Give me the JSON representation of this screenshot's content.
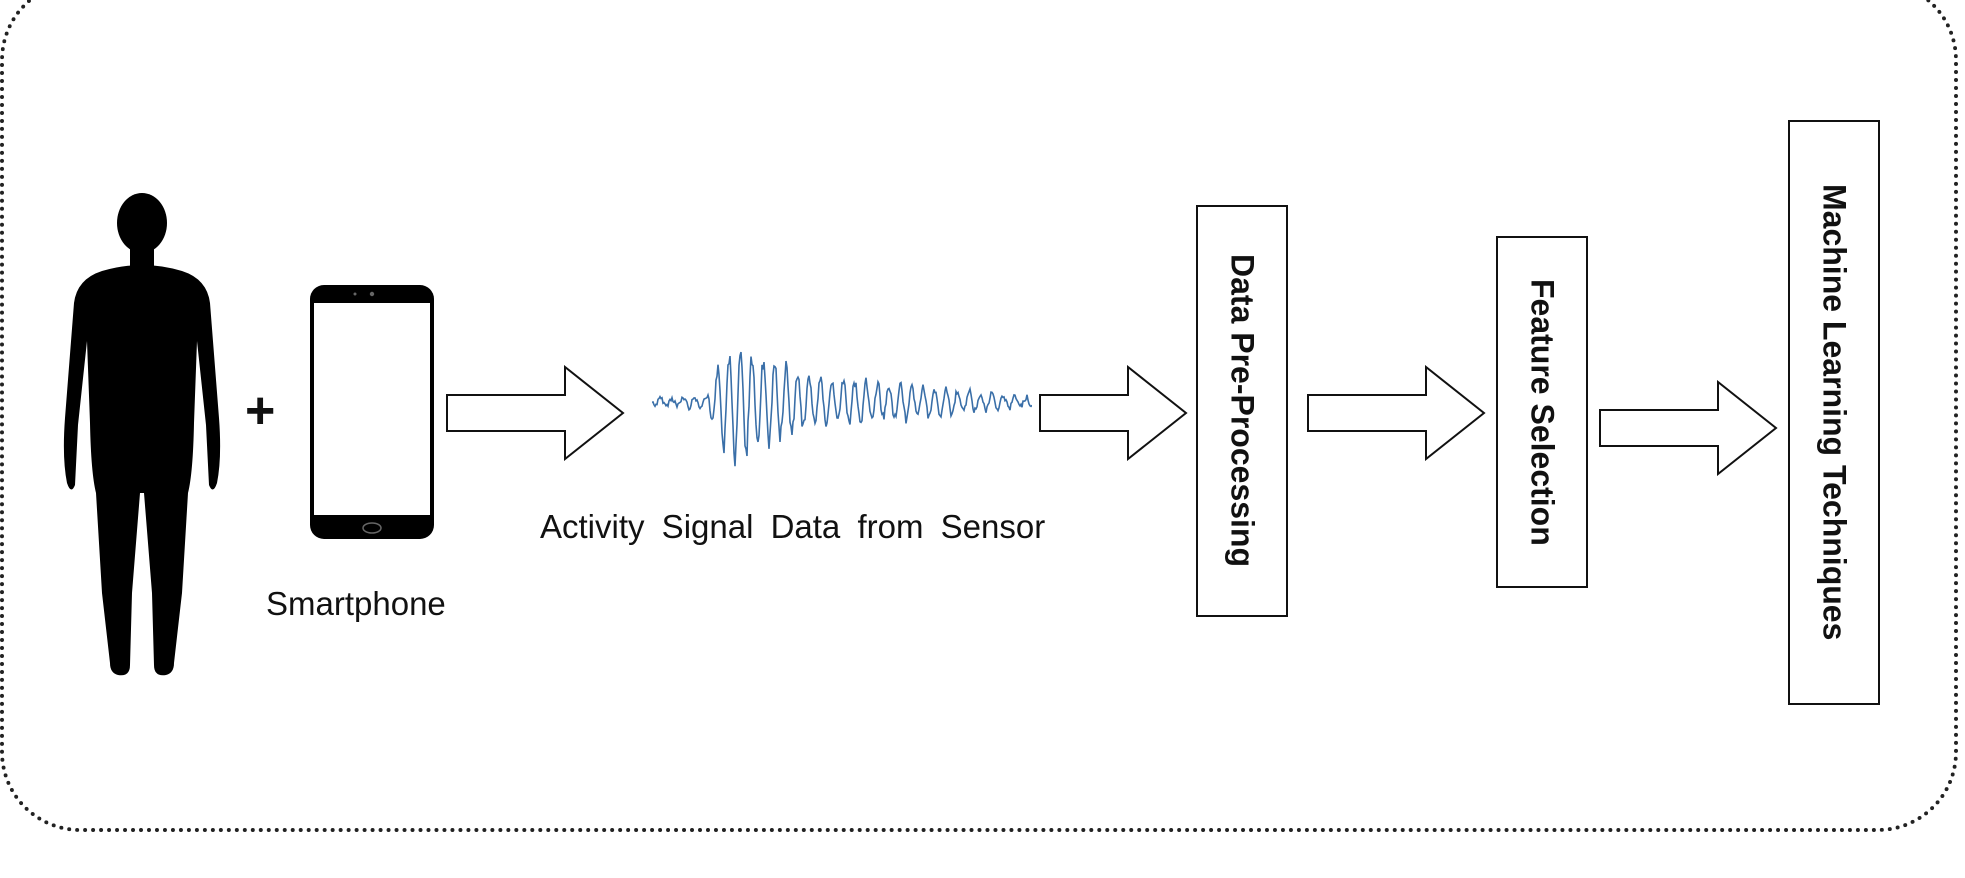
{
  "diagram": {
    "plus_sign": "+",
    "phone_label": "Smartphone",
    "signal_label": "Activity Signal Data from Sensor",
    "stages": [
      {
        "label": "Data Pre-Processing"
      },
      {
        "label": "Feature Selection"
      },
      {
        "label": "Machine Learning Techniques"
      }
    ],
    "colors": {
      "signal": "#3a6fa8",
      "border": "#222222"
    }
  }
}
